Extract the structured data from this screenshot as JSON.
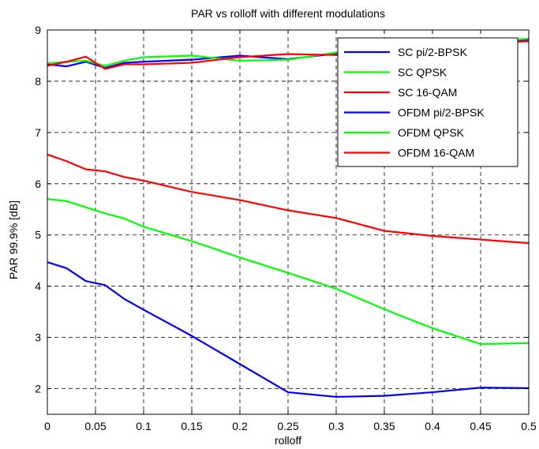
{
  "chart_data": {
    "type": "line",
    "title": "PAR vs rolloff with different modulations",
    "xlabel": "rolloff",
    "ylabel": "PAR 99.9% [dB]",
    "xlim": [
      0,
      0.5
    ],
    "ylim": [
      1.5,
      9
    ],
    "xticks": [
      0,
      0.05,
      0.1,
      0.15,
      0.2,
      0.25,
      0.3,
      0.35,
      0.4,
      0.45,
      0.5
    ],
    "xtick_labels": [
      "0",
      "0.05",
      "0.1",
      "0.15",
      "0.2",
      "0.25",
      "0.3",
      "0.35",
      "0.4",
      "0.45",
      "0.5"
    ],
    "yticks": [
      2,
      3,
      4,
      5,
      6,
      7,
      8,
      9
    ],
    "ytick_labels": [
      "2",
      "3",
      "4",
      "5",
      "6",
      "7",
      "8",
      "9"
    ],
    "grid": true,
    "legend_position": "top-right",
    "series": [
      {
        "name": "SC pi/2-BPSK",
        "color": "#0000ff",
        "x": [
          0,
          0.02,
          0.04,
          0.06,
          0.08,
          0.1,
          0.15,
          0.2,
          0.25,
          0.3,
          0.35,
          0.4,
          0.45,
          0.5
        ],
        "y": [
          8.33,
          8.29,
          8.38,
          8.26,
          8.36,
          8.38,
          8.42,
          8.5,
          8.43,
          8.54,
          8.6,
          8.65,
          8.72,
          8.8
        ]
      },
      {
        "name": "SC QPSK",
        "color": "#00ff00",
        "x": [
          0,
          0.02,
          0.04,
          0.06,
          0.08,
          0.1,
          0.15,
          0.2,
          0.25,
          0.3,
          0.35,
          0.4,
          0.45,
          0.5
        ],
        "y": [
          8.35,
          8.38,
          8.4,
          8.3,
          8.4,
          8.47,
          8.5,
          8.4,
          8.42,
          8.56,
          8.62,
          8.7,
          8.78,
          8.83
        ]
      },
      {
        "name": "SC 16-QAM",
        "color": "#ff0000",
        "x": [
          0,
          0.02,
          0.04,
          0.06,
          0.08,
          0.1,
          0.15,
          0.2,
          0.25,
          0.3,
          0.35,
          0.4,
          0.45,
          0.5
        ],
        "y": [
          8.3,
          8.38,
          8.48,
          8.24,
          8.33,
          8.33,
          8.36,
          8.47,
          8.53,
          8.51,
          8.6,
          8.68,
          8.74,
          8.78
        ]
      },
      {
        "name": "OFDM pi/2-BPSK",
        "color": "#0000ff",
        "x": [
          0,
          0.02,
          0.04,
          0.06,
          0.08,
          0.1,
          0.15,
          0.2,
          0.25,
          0.3,
          0.35,
          0.4,
          0.45,
          0.5
        ],
        "y": [
          4.47,
          4.35,
          4.1,
          4.02,
          3.75,
          3.54,
          3.03,
          2.48,
          1.93,
          1.84,
          1.86,
          1.93,
          2.02,
          2.01
        ]
      },
      {
        "name": "OFDM QPSK",
        "color": "#00ff00",
        "x": [
          0,
          0.02,
          0.04,
          0.06,
          0.08,
          0.1,
          0.15,
          0.2,
          0.25,
          0.3,
          0.35,
          0.4,
          0.45,
          0.5
        ],
        "y": [
          5.7,
          5.66,
          5.54,
          5.42,
          5.32,
          5.16,
          4.88,
          4.56,
          4.26,
          3.95,
          3.55,
          3.18,
          2.87,
          2.89
        ]
      },
      {
        "name": "OFDM 16-QAM",
        "color": "#ff0000",
        "x": [
          0,
          0.02,
          0.04,
          0.06,
          0.08,
          0.1,
          0.15,
          0.2,
          0.25,
          0.3,
          0.35,
          0.4,
          0.45,
          0.5
        ],
        "y": [
          6.57,
          6.44,
          6.28,
          6.24,
          6.13,
          6.06,
          5.84,
          5.68,
          5.48,
          5.33,
          5.08,
          4.98,
          4.91,
          4.84
        ]
      }
    ]
  }
}
